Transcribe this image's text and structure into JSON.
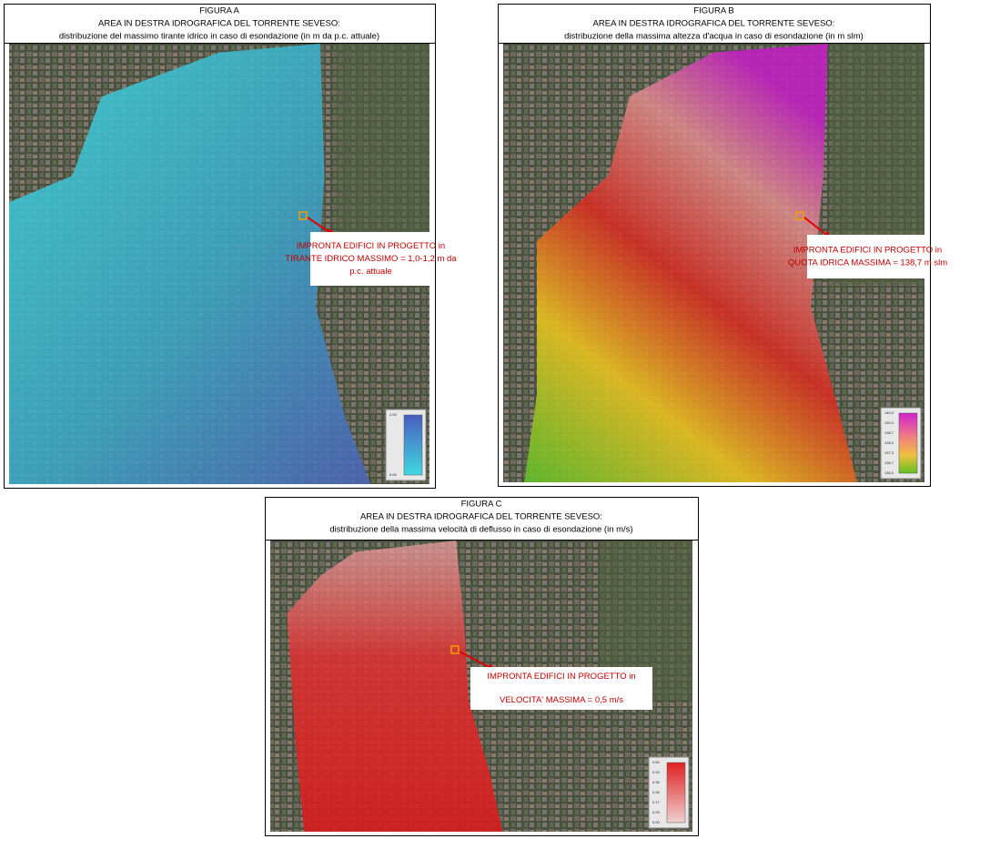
{
  "figures": [
    {
      "label": "FIGURA A",
      "title": "AREA IN DESTRA IDROGRAFICA DEL TORRENTE SEVESO:",
      "subtitle": "distribuzione del massimo tirante idrico in caso di esondazione (in m da p.c. attuale)",
      "annotation": [
        "IMPRONTA EDIFICI IN PROGETTO in",
        "TIRANTE IDRICO MASSIMO = 1,0-1,2 m da",
        "p.c. attuale"
      ],
      "legend": [
        "2.00",
        "0.00"
      ]
    },
    {
      "label": "FIGURA B",
      "title": "AREA IN DESTRA IDROGRAFICA DEL TORRENTE SEVESO:",
      "subtitle": "distribuzione della massima altezza d'acqua in caso di esondazione (in m slm)",
      "annotation": [
        "IMPRONTA EDIFICI IN PROGETTO in",
        "QUOTA IDRICA MASSIMA = 138,7 m slm"
      ],
      "legend": [
        "140.0",
        "139.3",
        "138.7",
        "138.0",
        "137.3",
        "136.7",
        "136.0"
      ]
    },
    {
      "label": "FIGURA C",
      "title": "AREA IN DESTRA IDROGRAFICA DEL TORRENTE SEVESO:",
      "subtitle": "distribuzione della massima velocità di deflusso in caso di esondazione (in m/s)",
      "annotation": [
        "IMPRONTA EDIFICI IN PROGETTO in",
        "VELOCITA' MASSIMA = 0,5 m/s"
      ],
      "legend": [
        "0.60",
        "0.43",
        "0.35",
        "0.26",
        "0.17",
        "0.09",
        "0.00"
      ]
    }
  ]
}
